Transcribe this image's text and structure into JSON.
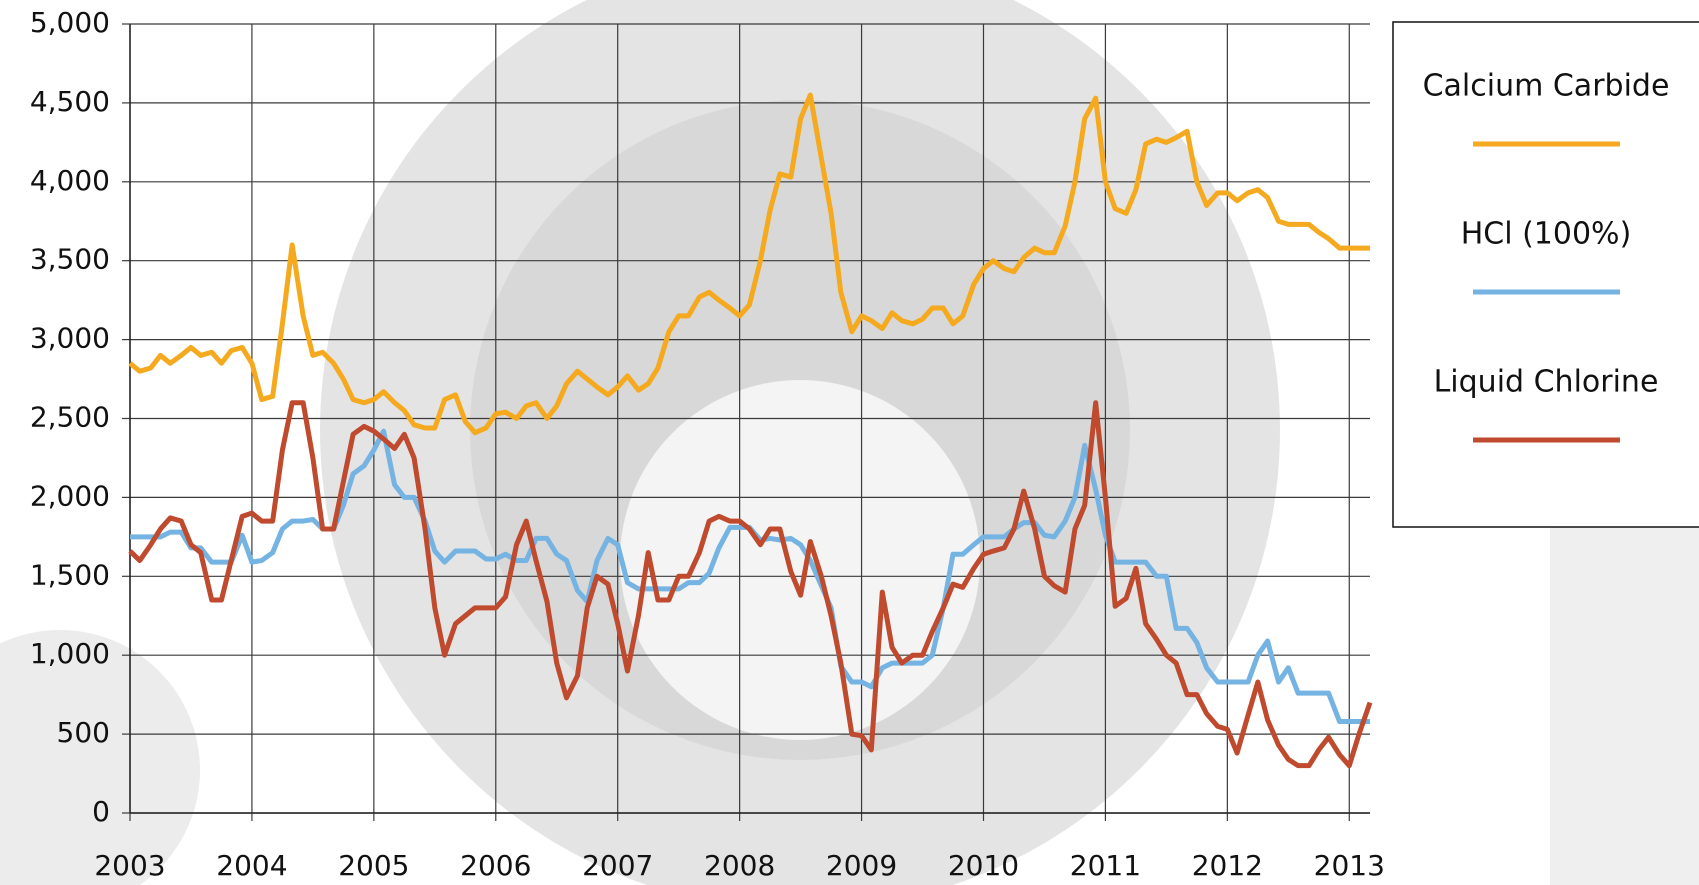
{
  "chart_data": {
    "type": "line",
    "x": [
      2003,
      2003.08,
      2003.17,
      2003.25,
      2003.33,
      2003.42,
      2003.5,
      2003.58,
      2003.67,
      2003.75,
      2003.83,
      2003.92,
      2004,
      2004.08,
      2004.17,
      2004.25,
      2004.33,
      2004.42,
      2004.5,
      2004.58,
      2004.67,
      2004.75,
      2004.83,
      2004.92,
      2005,
      2005.08,
      2005.17,
      2005.25,
      2005.33,
      2005.42,
      2005.5,
      2005.58,
      2005.67,
      2005.75,
      2005.83,
      2005.92,
      2006,
      2006.08,
      2006.17,
      2006.25,
      2006.33,
      2006.42,
      2006.5,
      2006.58,
      2006.67,
      2006.75,
      2006.83,
      2006.92,
      2007,
      2007.08,
      2007.17,
      2007.25,
      2007.33,
      2007.42,
      2007.5,
      2007.58,
      2007.67,
      2007.75,
      2007.83,
      2007.92,
      2008,
      2008.08,
      2008.17,
      2008.25,
      2008.33,
      2008.42,
      2008.5,
      2008.58,
      2008.67,
      2008.75,
      2008.83,
      2008.92,
      2009,
      2009.08,
      2009.17,
      2009.25,
      2009.33,
      2009.42,
      2009.5,
      2009.58,
      2009.67,
      2009.75,
      2009.83,
      2009.92,
      2010,
      2010.08,
      2010.17,
      2010.25,
      2010.33,
      2010.42,
      2010.5,
      2010.58,
      2010.67,
      2010.75,
      2010.83,
      2010.92,
      2011,
      2011.08,
      2011.17,
      2011.25,
      2011.33,
      2011.42,
      2011.5,
      2011.58,
      2011.67,
      2011.75,
      2011.83,
      2011.92,
      2012,
      2012.08,
      2012.17,
      2012.25,
      2012.33,
      2012.42,
      2012.5,
      2012.58,
      2012.67,
      2012.75,
      2012.83,
      2012.92,
      2013,
      2013.08,
      2013.17
    ],
    "series": [
      {
        "name": "Calcium Carbide",
        "color": "#f5a91f",
        "values": [
          2850,
          2800,
          2820,
          2900,
          2850,
          2900,
          2950,
          2900,
          2920,
          2850,
          2930,
          2950,
          2850,
          2620,
          2640,
          3100,
          3600,
          3150,
          2900,
          2920,
          2850,
          2750,
          2620,
          2600,
          2620,
          2670,
          2600,
          2550,
          2460,
          2440,
          2440,
          2620,
          2650,
          2480,
          2410,
          2440,
          2530,
          2540,
          2500,
          2580,
          2600,
          2500,
          2580,
          2720,
          2800,
          2750,
          2700,
          2650,
          2700,
          2770,
          2680,
          2720,
          2820,
          3050,
          3150,
          3150,
          3270,
          3300,
          3250,
          3200,
          3150,
          3220,
          3500,
          3820,
          4050,
          4030,
          4400,
          4550,
          4150,
          3800,
          3300,
          3050,
          3150,
          3120,
          3070,
          3170,
          3120,
          3100,
          3130,
          3200,
          3200,
          3100,
          3150,
          3350,
          3450,
          3500,
          3450,
          3430,
          3520,
          3580,
          3550,
          3550,
          3720,
          4000,
          4400,
          4530,
          4000,
          3830,
          3800,
          3950,
          4240,
          4270,
          4250,
          4280,
          4320,
          4000,
          3850,
          3930,
          3930,
          3880,
          3930,
          3950,
          3900,
          3750,
          3730,
          3730,
          3730,
          3680,
          3640,
          3580,
          3580,
          3580,
          3580
        ]
      },
      {
        "name": "HCl (100%)",
        "color": "#74b3e2",
        "values": [
          1750,
          1750,
          1750,
          1750,
          1780,
          1780,
          1680,
          1680,
          1590,
          1590,
          1590,
          1760,
          1590,
          1600,
          1650,
          1800,
          1850,
          1850,
          1860,
          1800,
          1800,
          1950,
          2150,
          2200,
          2300,
          2420,
          2080,
          2000,
          2000,
          1850,
          1660,
          1590,
          1660,
          1660,
          1660,
          1610,
          1610,
          1640,
          1600,
          1600,
          1740,
          1740,
          1640,
          1600,
          1410,
          1340,
          1600,
          1740,
          1700,
          1460,
          1420,
          1420,
          1420,
          1420,
          1420,
          1460,
          1460,
          1520,
          1680,
          1810,
          1810,
          1810,
          1730,
          1740,
          1730,
          1740,
          1700,
          1600,
          1440,
          1300,
          930,
          830,
          830,
          800,
          920,
          950,
          950,
          950,
          950,
          1000,
          1300,
          1640,
          1640,
          1700,
          1750,
          1750,
          1750,
          1800,
          1840,
          1840,
          1760,
          1750,
          1850,
          2000,
          2330,
          2050,
          1760,
          1590,
          1590,
          1590,
          1590,
          1500,
          1500,
          1170,
          1170,
          1080,
          920,
          830,
          830,
          830,
          830,
          1000,
          1090,
          830,
          920,
          760,
          760,
          760,
          760,
          580,
          580,
          580,
          580
        ]
      },
      {
        "name": "Liquid Chlorine",
        "color": "#bf4a2e",
        "values": [
          1660,
          1600,
          1700,
          1800,
          1870,
          1850,
          1700,
          1650,
          1350,
          1350,
          1600,
          1880,
          1900,
          1850,
          1850,
          2300,
          2600,
          2600,
          2250,
          1800,
          1800,
          2100,
          2400,
          2450,
          2420,
          2370,
          2310,
          2400,
          2250,
          1800,
          1300,
          1000,
          1200,
          1250,
          1300,
          1300,
          1300,
          1370,
          1700,
          1850,
          1600,
          1340,
          950,
          730,
          870,
          1300,
          1500,
          1450,
          1200,
          900,
          1250,
          1650,
          1350,
          1350,
          1500,
          1500,
          1650,
          1850,
          1880,
          1850,
          1850,
          1800,
          1700,
          1800,
          1800,
          1530,
          1380,
          1720,
          1500,
          1250,
          950,
          500,
          490,
          400,
          1400,
          1050,
          950,
          1000,
          1000,
          1150,
          1300,
          1450,
          1430,
          1550,
          1640,
          1660,
          1680,
          1800,
          2040,
          1800,
          1500,
          1440,
          1400,
          1800,
          1950,
          2600,
          2000,
          1310,
          1360,
          1550,
          1200,
          1100,
          1000,
          950,
          750,
          750,
          630,
          550,
          530,
          380,
          620,
          830,
          590,
          430,
          340,
          300,
          300,
          400,
          480,
          370,
          300,
          500,
          700
        ]
      }
    ],
    "xlim": [
      2003,
      2013.17
    ],
    "xticks": [
      2003,
      2004,
      2005,
      2006,
      2007,
      2008,
      2009,
      2010,
      2011,
      2012,
      2013
    ],
    "ylim": [
      0,
      5000
    ],
    "yticks": [
      0,
      500,
      {
        "value": 1000,
        "label": "1,000"
      },
      {
        "value": 1500,
        "label": "1,500"
      },
      {
        "value": 2000,
        "label": "2,000"
      },
      {
        "value": 2500,
        "label": "2,500"
      },
      {
        "value": 3000,
        "label": "3,000"
      },
      {
        "value": 3500,
        "label": "3,500"
      },
      {
        "value": 4000,
        "label": "4,000"
      },
      {
        "value": 4500,
        "label": "4,500"
      },
      {
        "value": 5000,
        "label": "5,000"
      }
    ],
    "grid": true,
    "legend": "right"
  }
}
